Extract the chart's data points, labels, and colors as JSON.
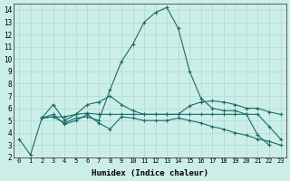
{
  "xlabel": "Humidex (Indice chaleur)",
  "bg_color": "#cceee8",
  "grid_color": "#aaddcc",
  "line_color": "#1a6b6b",
  "xlim": [
    -0.5,
    23.5
  ],
  "ylim": [
    2,
    14.5
  ],
  "xticks": [
    0,
    1,
    2,
    3,
    4,
    5,
    6,
    7,
    8,
    9,
    10,
    11,
    12,
    13,
    14,
    15,
    16,
    17,
    18,
    19,
    20,
    21,
    22,
    23
  ],
  "yticks": [
    2,
    3,
    4,
    5,
    6,
    7,
    8,
    9,
    10,
    11,
    12,
    13,
    14
  ],
  "lines": [
    {
      "x": [
        0,
        1,
        2,
        3,
        4,
        5,
        6,
        7,
        8,
        9,
        10,
        11,
        12,
        13,
        14,
        15,
        16,
        17,
        18,
        19,
        20,
        21,
        22,
        23
      ],
      "y": [
        3.5,
        2.2,
        5.2,
        5.3,
        4.8,
        5.2,
        5.3,
        5.0,
        7.5,
        9.8,
        11.2,
        13.0,
        13.8,
        14.2,
        12.5,
        9.0,
        6.8,
        6.0,
        5.8,
        5.8,
        5.5,
        3.8,
        3.0,
        null
      ]
    },
    {
      "x": [
        2,
        3,
        4,
        5,
        6,
        7,
        8,
        9,
        10,
        11,
        12,
        13,
        14,
        15,
        16,
        17,
        18,
        19,
        20,
        21,
        22,
        23
      ],
      "y": [
        5.2,
        6.3,
        5.0,
        5.5,
        6.3,
        6.5,
        7.0,
        6.3,
        5.8,
        5.5,
        5.5,
        5.5,
        5.5,
        6.2,
        6.5,
        6.6,
        6.5,
        6.3,
        6.0,
        6.0,
        5.7,
        5.5
      ]
    },
    {
      "x": [
        2,
        3,
        4,
        5,
        6,
        7,
        8,
        9,
        10,
        11,
        12,
        13,
        14,
        15,
        16,
        17,
        18,
        19,
        20,
        21,
        22,
        23
      ],
      "y": [
        5.2,
        5.5,
        4.7,
        5.0,
        5.5,
        4.8,
        4.3,
        5.3,
        5.2,
        5.0,
        5.0,
        5.0,
        5.2,
        5.0,
        4.8,
        4.5,
        4.3,
        4.0,
        3.8,
        3.5,
        3.3,
        3.0
      ]
    },
    {
      "x": [
        2,
        3,
        4,
        5,
        6,
        7,
        8,
        9,
        10,
        11,
        12,
        13,
        14,
        15,
        16,
        17,
        18,
        19,
        20,
        21,
        22,
        23
      ],
      "y": [
        5.2,
        5.3,
        5.3,
        5.5,
        5.6,
        5.5,
        5.5,
        5.5,
        5.5,
        5.5,
        5.5,
        5.5,
        5.5,
        5.5,
        5.5,
        5.5,
        5.5,
        5.5,
        5.5,
        5.5,
        4.5,
        3.5
      ]
    }
  ]
}
